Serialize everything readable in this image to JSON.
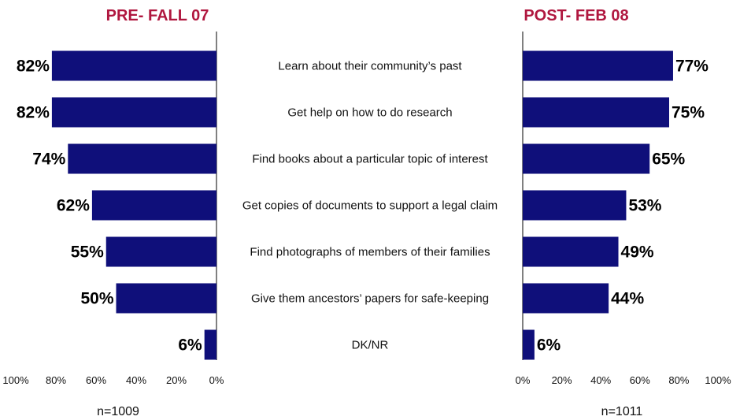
{
  "chart_data": {
    "type": "bar",
    "orientation": "horizontal",
    "layout": "butterfly",
    "color": "#0f0f7a",
    "title_color": "#b0173f",
    "categories": [
      "Learn about their community’s past",
      "Get help on how to do research",
      "Find books about a particular topic of interest",
      "Get copies of documents to support a legal claim",
      "Find photographs of members of their families",
      "Give them ancestors’ papers for safe-keeping",
      "DK/NR"
    ],
    "panels": [
      {
        "title": "PRE- FALL 07",
        "values": [
          82,
          82,
          74,
          62,
          55,
          50,
          6
        ],
        "value_labels": [
          "82%",
          "82%",
          "74%",
          "62%",
          "55%",
          "50%",
          "6%"
        ],
        "ticks": [
          "100%",
          "80%",
          "60%",
          "40%",
          "20%",
          "0%"
        ],
        "xlim": [
          0,
          100
        ],
        "direction": "reversed",
        "note": "n=1009"
      },
      {
        "title": "POST- FEB 08",
        "values": [
          77,
          75,
          65,
          53,
          49,
          44,
          6
        ],
        "value_labels": [
          "77%",
          "75%",
          "65%",
          "53%",
          "49%",
          "44%",
          "6%"
        ],
        "ticks": [
          "0%",
          "20%",
          "40%",
          "60%",
          "80%",
          "100%"
        ],
        "xlim": [
          0,
          100
        ],
        "direction": "normal",
        "note": "n=1011"
      }
    ]
  }
}
